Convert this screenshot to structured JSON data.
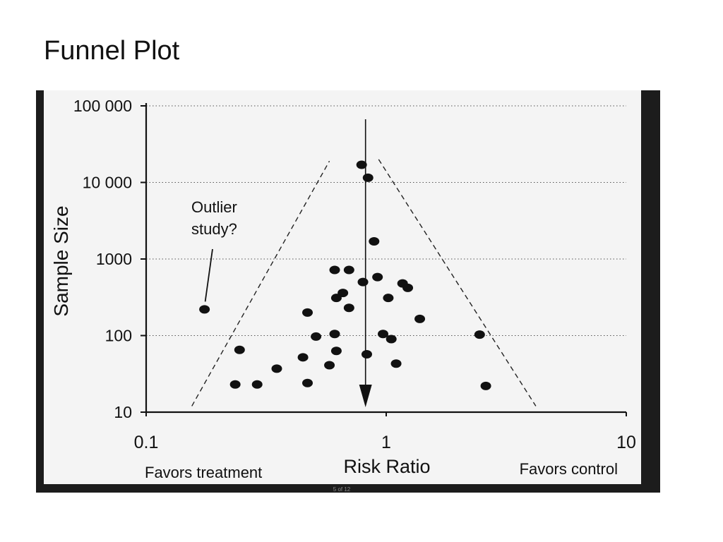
{
  "slide": {
    "title": "Funnel Plot",
    "page_indicator": "5 of 12"
  },
  "colors": {
    "background": "#ffffff",
    "frame": "#1c1c1c",
    "paper": "#f4f4f4",
    "ink": "#111111"
  },
  "chart_data": {
    "type": "scatter",
    "x_scale": "log",
    "y_scale": "log",
    "xlim": [
      0.1,
      10
    ],
    "ylim": [
      10,
      100000
    ],
    "x_ticks": [
      0.1,
      1,
      10
    ],
    "x_tick_labels": [
      "0.1",
      "1",
      "10"
    ],
    "y_ticks": [
      10,
      100,
      1000,
      10000,
      100000
    ],
    "y_tick_labels": [
      "10",
      "100",
      "1000",
      "10 000",
      "100 000"
    ],
    "xlabel": "Risk Ratio",
    "ylabel": "Sample Size",
    "x_side_labels": {
      "left": "Favors treatment",
      "right": "Favors control"
    },
    "grid": "horizontal-dotted",
    "reference_line": {
      "x": 0.82,
      "style": "vertical-arrow-down"
    },
    "funnel": {
      "left": [
        [
          0.155,
          12
        ],
        [
          0.58,
          19000
        ]
      ],
      "right": [
        [
          0.93,
          20000
        ],
        [
          4.2,
          12
        ]
      ],
      "style": "dashed"
    },
    "annotations": [
      {
        "text": "Outlier study?",
        "lines": [
          "Outlier",
          "study?"
        ],
        "points_to": [
          0.175,
          220
        ]
      }
    ],
    "points": [
      {
        "x": 0.79,
        "y": 17000
      },
      {
        "x": 0.84,
        "y": 11500
      },
      {
        "x": 0.89,
        "y": 1700
      },
      {
        "x": 0.175,
        "y": 220
      },
      {
        "x": 0.61,
        "y": 720
      },
      {
        "x": 0.7,
        "y": 720
      },
      {
        "x": 0.92,
        "y": 580
      },
      {
        "x": 0.8,
        "y": 500
      },
      {
        "x": 1.17,
        "y": 480
      },
      {
        "x": 1.23,
        "y": 420
      },
      {
        "x": 0.66,
        "y": 360
      },
      {
        "x": 0.62,
        "y": 310
      },
      {
        "x": 1.02,
        "y": 310
      },
      {
        "x": 0.7,
        "y": 230
      },
      {
        "x": 0.47,
        "y": 200
      },
      {
        "x": 1.38,
        "y": 165
      },
      {
        "x": 0.61,
        "y": 105
      },
      {
        "x": 0.51,
        "y": 97
      },
      {
        "x": 0.97,
        "y": 105
      },
      {
        "x": 1.05,
        "y": 90
      },
      {
        "x": 2.45,
        "y": 103
      },
      {
        "x": 0.245,
        "y": 65
      },
      {
        "x": 0.62,
        "y": 63
      },
      {
        "x": 0.83,
        "y": 57
      },
      {
        "x": 0.45,
        "y": 52
      },
      {
        "x": 0.58,
        "y": 41
      },
      {
        "x": 1.1,
        "y": 43
      },
      {
        "x": 0.35,
        "y": 37
      },
      {
        "x": 0.235,
        "y": 23
      },
      {
        "x": 0.29,
        "y": 23
      },
      {
        "x": 0.47,
        "y": 24
      },
      {
        "x": 2.6,
        "y": 22
      }
    ]
  }
}
